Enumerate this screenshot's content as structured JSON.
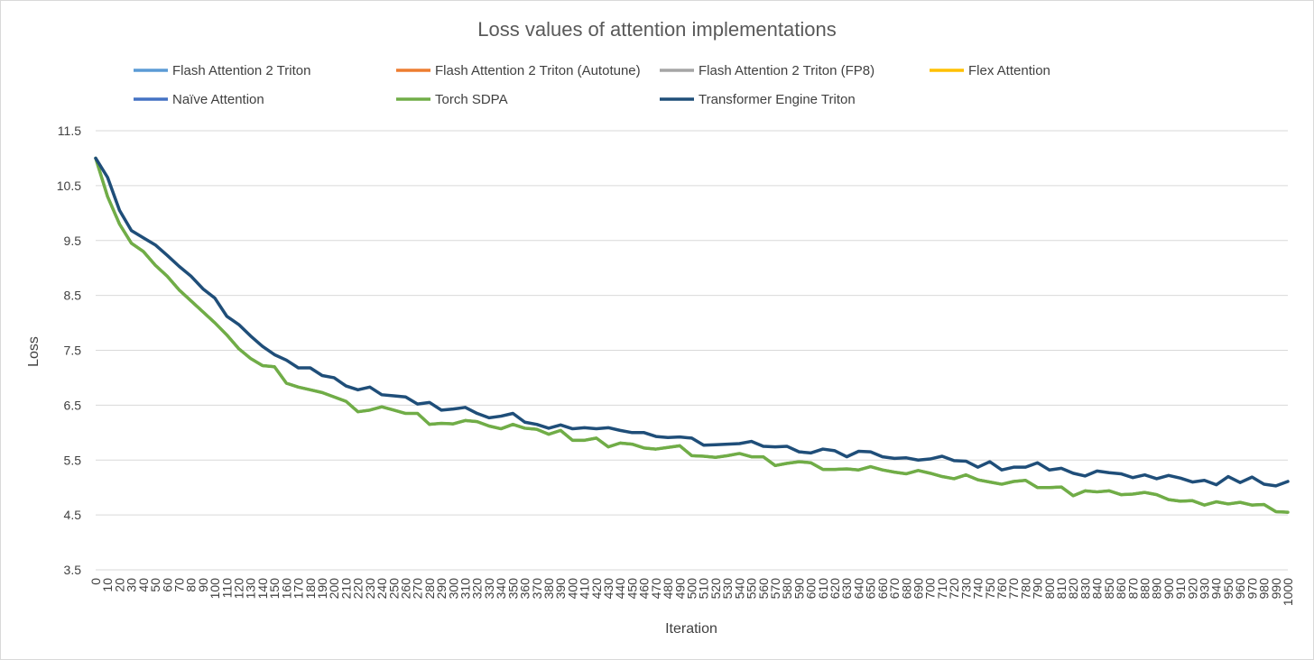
{
  "chart_data": {
    "type": "line",
    "title": "Loss values of attention implementations",
    "xlabel": "Iteration",
    "ylabel": "Loss",
    "ylim": [
      3.5,
      11.5
    ],
    "yticks": [
      "3.5",
      "4.5",
      "5.5",
      "6.5",
      "7.5",
      "8.5",
      "9.5",
      "10.5",
      "11.5"
    ],
    "xlim": [
      0,
      1000
    ],
    "xtick_step": 10,
    "grid": "horizontal",
    "legend_position": "top",
    "x": [
      0,
      10,
      20,
      30,
      40,
      50,
      60,
      70,
      80,
      90,
      100,
      110,
      120,
      130,
      140,
      150,
      160,
      170,
      180,
      190,
      200,
      210,
      220,
      230,
      240,
      250,
      260,
      270,
      280,
      290,
      300,
      310,
      320,
      330,
      340,
      350,
      360,
      370,
      380,
      390,
      400,
      410,
      420,
      430,
      440,
      450,
      460,
      470,
      480,
      490,
      500,
      510,
      520,
      530,
      540,
      550,
      560,
      570,
      580,
      590,
      600,
      610,
      620,
      630,
      640,
      650,
      660,
      670,
      680,
      690,
      700,
      710,
      720,
      730,
      740,
      750,
      760,
      770,
      780,
      790,
      800,
      810,
      820,
      830,
      840,
      850,
      860,
      870,
      880,
      890,
      900,
      910,
      920,
      930,
      940,
      950,
      960,
      970,
      980,
      990,
      1000
    ],
    "series": [
      {
        "name": "Flash Attention 2 Triton",
        "color": "#5b9bd5",
        "width": 3,
        "ref": "sdpa"
      },
      {
        "name": "Flash Attention 2 Triton (Autotune)",
        "color": "#ed7d31",
        "width": 3,
        "ref": "sdpa"
      },
      {
        "name": "Flash Attention 2 Triton (FP8)",
        "color": "#a5a5a5",
        "width": 3,
        "ref": "sdpa"
      },
      {
        "name": "Flex Attention",
        "color": "#ffc000",
        "width": 3,
        "ref": "sdpa"
      },
      {
        "name": "Naïve Attention",
        "color": "#4472c4",
        "width": 3,
        "ref": "sdpa"
      },
      {
        "name": "Torch SDPA",
        "color": "#70ad47",
        "width": 3.5,
        "values": [
          11.0,
          10.3,
          9.8,
          9.45,
          9.3,
          9.05,
          8.85,
          8.6,
          8.4,
          8.2,
          8.0,
          7.78,
          7.53,
          7.35,
          7.22,
          7.2,
          6.9,
          6.83,
          6.78,
          6.73,
          6.65,
          6.57,
          6.38,
          6.41,
          6.47,
          6.41,
          6.35,
          6.35,
          6.15,
          6.17,
          6.16,
          6.22,
          6.2,
          6.12,
          6.07,
          6.15,
          6.08,
          6.06,
          5.97,
          6.04,
          5.86,
          5.86,
          5.9,
          5.74,
          5.81,
          5.79,
          5.72,
          5.7,
          5.73,
          5.76,
          5.58,
          5.57,
          5.55,
          5.58,
          5.62,
          5.56,
          5.56,
          5.4,
          5.44,
          5.47,
          5.45,
          5.33,
          5.33,
          5.34,
          5.32,
          5.38,
          5.32,
          5.28,
          5.25,
          5.31,
          5.26,
          5.2,
          5.16,
          5.23,
          5.14,
          5.1,
          5.06,
          5.11,
          5.13,
          5.0,
          5.0,
          5.01,
          4.85,
          4.94,
          4.92,
          4.94,
          4.87,
          4.88,
          4.91,
          4.87,
          4.78,
          4.75,
          4.76,
          4.68,
          4.74,
          4.7,
          4.73,
          4.68,
          4.69,
          4.56,
          4.55
        ]
      },
      {
        "name": "Transformer Engine Triton",
        "color": "#1f4e79",
        "width": 3.5,
        "values": [
          11.0,
          10.65,
          10.05,
          9.68,
          9.55,
          9.42,
          9.23,
          9.03,
          8.85,
          8.62,
          8.45,
          8.12,
          7.97,
          7.76,
          7.57,
          7.42,
          7.32,
          7.18,
          7.18,
          7.04,
          7.0,
          6.85,
          6.78,
          6.83,
          6.69,
          6.67,
          6.65,
          6.52,
          6.55,
          6.41,
          6.43,
          6.46,
          6.35,
          6.27,
          6.3,
          6.35,
          6.19,
          6.15,
          6.08,
          6.14,
          6.07,
          6.09,
          6.07,
          6.09,
          6.04,
          6.0,
          6.0,
          5.93,
          5.91,
          5.92,
          5.9,
          5.77,
          5.78,
          5.79,
          5.8,
          5.84,
          5.75,
          5.74,
          5.75,
          5.65,
          5.63,
          5.7,
          5.67,
          5.56,
          5.66,
          5.65,
          5.56,
          5.53,
          5.54,
          5.5,
          5.52,
          5.57,
          5.49,
          5.48,
          5.37,
          5.47,
          5.32,
          5.37,
          5.37,
          5.45,
          5.32,
          5.35,
          5.26,
          5.21,
          5.3,
          5.27,
          5.25,
          5.18,
          5.23,
          5.16,
          5.22,
          5.17,
          5.1,
          5.13,
          5.05,
          5.2,
          5.09,
          5.19,
          5.06,
          5.03,
          5.11
        ]
      }
    ]
  }
}
